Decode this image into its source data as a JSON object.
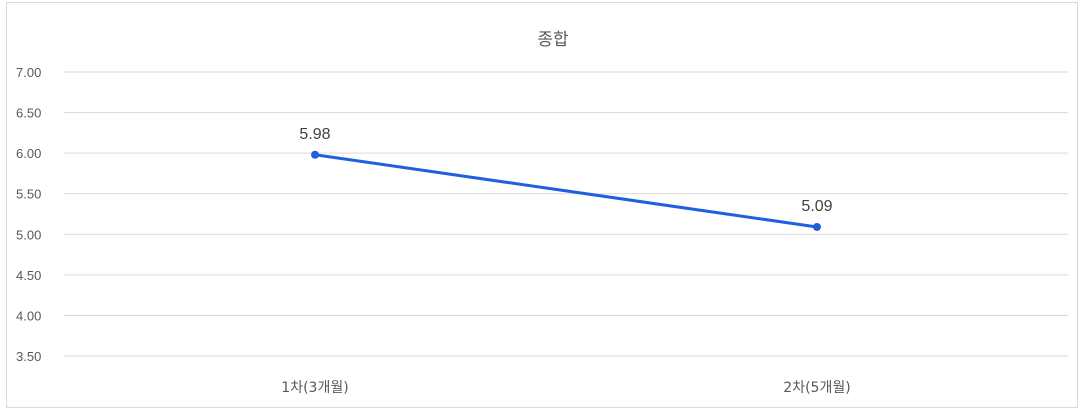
{
  "chart_data": {
    "type": "line",
    "title": "종합",
    "categories": [
      "1차(3개월)",
      "2차(5개월)"
    ],
    "series": [
      {
        "values": [
          5.98,
          5.09
        ],
        "color": "#1f5fe0"
      }
    ],
    "ylim": [
      3.5,
      7.0
    ],
    "yticks": [
      "3.50",
      "4.00",
      "4.50",
      "5.00",
      "5.50",
      "6.00",
      "6.50",
      "7.00"
    ],
    "data_labels": [
      "5.98",
      "5.09"
    ],
    "grid": true,
    "legend": "none"
  }
}
